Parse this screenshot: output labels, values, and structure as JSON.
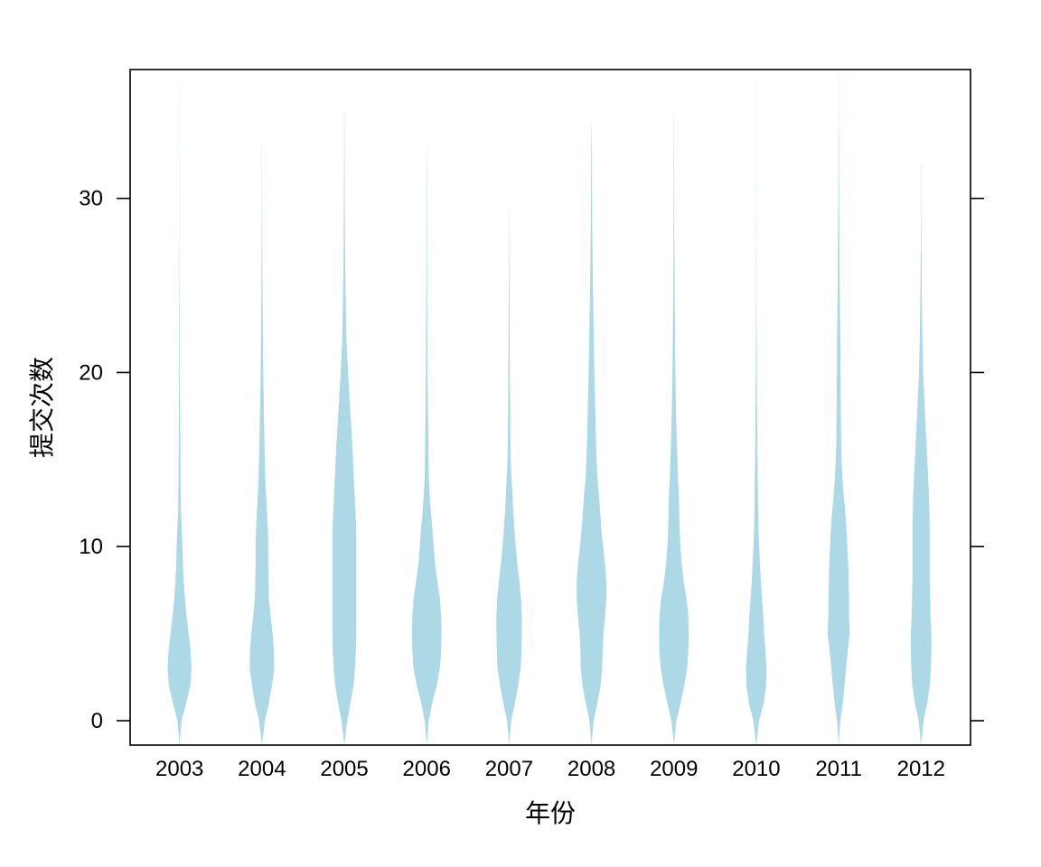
{
  "chart_data": {
    "type": "violin",
    "xlabel": "年份",
    "ylabel": "提交次数",
    "ylim": [
      -1.4,
      37.4
    ],
    "yticks": [
      0,
      10,
      20,
      30
    ],
    "ytick_labels": [
      "0",
      "10",
      "20",
      "30"
    ],
    "categories": [
      "2003",
      "2004",
      "2005",
      "2006",
      "2007",
      "2008",
      "2009",
      "2010",
      "2011",
      "2012"
    ],
    "fill_color": "#add8e6",
    "grid": false,
    "legend": "none",
    "series": [
      {
        "category": "2003",
        "profile": [
          [
            -1.4,
            0.0
          ],
          [
            0,
            0.05
          ],
          [
            1,
            0.16
          ],
          [
            2,
            0.26
          ],
          [
            3,
            0.29
          ],
          [
            4,
            0.27
          ],
          [
            5,
            0.22
          ],
          [
            6,
            0.17
          ],
          [
            7,
            0.13
          ],
          [
            8,
            0.1
          ],
          [
            9,
            0.08
          ],
          [
            10,
            0.07
          ],
          [
            11,
            0.055
          ],
          [
            12,
            0.035
          ],
          [
            14,
            0.025
          ],
          [
            16,
            0.02
          ],
          [
            18,
            0.016
          ],
          [
            20,
            0.01
          ],
          [
            25,
            0.005
          ],
          [
            30,
            0.003
          ],
          [
            37,
            0.001
          ]
        ]
      },
      {
        "category": "2004",
        "profile": [
          [
            -1.4,
            0.0
          ],
          [
            0,
            0.07
          ],
          [
            1,
            0.17
          ],
          [
            2,
            0.24
          ],
          [
            3,
            0.3
          ],
          [
            4,
            0.29
          ],
          [
            5,
            0.26
          ],
          [
            6,
            0.21
          ],
          [
            7,
            0.17
          ],
          [
            8,
            0.16
          ],
          [
            9,
            0.155
          ],
          [
            10,
            0.155
          ],
          [
            11,
            0.145
          ],
          [
            12,
            0.12
          ],
          [
            14,
            0.08
          ],
          [
            16,
            0.06
          ],
          [
            18,
            0.045
          ],
          [
            20,
            0.03
          ],
          [
            24,
            0.015
          ],
          [
            28,
            0.006
          ],
          [
            33,
            0.002
          ]
        ]
      },
      {
        "category": "2005",
        "profile": [
          [
            -1.4,
            0.0
          ],
          [
            0,
            0.07
          ],
          [
            1,
            0.15
          ],
          [
            2,
            0.22
          ],
          [
            3,
            0.26
          ],
          [
            4,
            0.28
          ],
          [
            5,
            0.29
          ],
          [
            6,
            0.29
          ],
          [
            7,
            0.29
          ],
          [
            8,
            0.29
          ],
          [
            9,
            0.29
          ],
          [
            10,
            0.29
          ],
          [
            11,
            0.29
          ],
          [
            12,
            0.27
          ],
          [
            13,
            0.25
          ],
          [
            14,
            0.23
          ],
          [
            16,
            0.19
          ],
          [
            18,
            0.14
          ],
          [
            20,
            0.09
          ],
          [
            22,
            0.05
          ],
          [
            26,
            0.02
          ],
          [
            30,
            0.01
          ],
          [
            35,
            0.003
          ]
        ]
      },
      {
        "category": "2006",
        "profile": [
          [
            -1.4,
            0.0
          ],
          [
            0,
            0.05
          ],
          [
            1,
            0.13
          ],
          [
            2,
            0.24
          ],
          [
            3,
            0.32
          ],
          [
            4,
            0.35
          ],
          [
            5,
            0.36
          ],
          [
            6,
            0.35
          ],
          [
            7,
            0.32
          ],
          [
            8,
            0.26
          ],
          [
            9,
            0.2
          ],
          [
            10,
            0.17
          ],
          [
            11,
            0.14
          ],
          [
            12,
            0.1
          ],
          [
            13,
            0.07
          ],
          [
            14,
            0.05
          ],
          [
            16,
            0.04
          ],
          [
            18,
            0.03
          ],
          [
            20,
            0.02
          ],
          [
            25,
            0.01
          ],
          [
            30,
            0.005
          ],
          [
            33,
            0.002
          ]
        ]
      },
      {
        "category": "2007",
        "profile": [
          [
            -1.4,
            0.0
          ],
          [
            0,
            0.05
          ],
          [
            1,
            0.14
          ],
          [
            2,
            0.22
          ],
          [
            3,
            0.28
          ],
          [
            4,
            0.3
          ],
          [
            5,
            0.31
          ],
          [
            6,
            0.31
          ],
          [
            7,
            0.29
          ],
          [
            8,
            0.25
          ],
          [
            9,
            0.2
          ],
          [
            10,
            0.16
          ],
          [
            11,
            0.13
          ],
          [
            12,
            0.1
          ],
          [
            13,
            0.08
          ],
          [
            14,
            0.06
          ],
          [
            15,
            0.04
          ],
          [
            16,
            0.03
          ],
          [
            18,
            0.025
          ],
          [
            20,
            0.018
          ],
          [
            24,
            0.01
          ],
          [
            28,
            0.004
          ],
          [
            29.5,
            0.001
          ]
        ]
      },
      {
        "category": "2008",
        "profile": [
          [
            -1.4,
            0.0
          ],
          [
            0,
            0.05
          ],
          [
            1,
            0.14
          ],
          [
            2,
            0.22
          ],
          [
            3,
            0.26
          ],
          [
            4,
            0.27
          ],
          [
            5,
            0.29
          ],
          [
            6,
            0.33
          ],
          [
            7,
            0.36
          ],
          [
            8,
            0.36
          ],
          [
            9,
            0.33
          ],
          [
            10,
            0.28
          ],
          [
            11,
            0.24
          ],
          [
            12,
            0.21
          ],
          [
            13,
            0.18
          ],
          [
            14,
            0.14
          ],
          [
            16,
            0.11
          ],
          [
            18,
            0.09
          ],
          [
            20,
            0.07
          ],
          [
            24,
            0.04
          ],
          [
            28,
            0.02
          ],
          [
            32,
            0.008
          ],
          [
            34.5,
            0.002
          ]
        ]
      },
      {
        "category": "2009",
        "profile": [
          [
            -1.4,
            0.0
          ],
          [
            0,
            0.06
          ],
          [
            1,
            0.16
          ],
          [
            2,
            0.25
          ],
          [
            3,
            0.32
          ],
          [
            4,
            0.35
          ],
          [
            5,
            0.36
          ],
          [
            6,
            0.35
          ],
          [
            7,
            0.31
          ],
          [
            8,
            0.24
          ],
          [
            9,
            0.19
          ],
          [
            10,
            0.16
          ],
          [
            11,
            0.14
          ],
          [
            12,
            0.13
          ],
          [
            13,
            0.12
          ],
          [
            14,
            0.1
          ],
          [
            16,
            0.07
          ],
          [
            18,
            0.05
          ],
          [
            20,
            0.035
          ],
          [
            24,
            0.02
          ],
          [
            28,
            0.01
          ],
          [
            35,
            0.002
          ]
        ]
      },
      {
        "category": "2010",
        "profile": [
          [
            -1.4,
            0.0
          ],
          [
            0,
            0.07
          ],
          [
            1,
            0.18
          ],
          [
            2,
            0.24
          ],
          [
            3,
            0.25
          ],
          [
            4,
            0.22
          ],
          [
            5,
            0.19
          ],
          [
            6,
            0.17
          ],
          [
            7,
            0.14
          ],
          [
            8,
            0.11
          ],
          [
            9,
            0.09
          ],
          [
            10,
            0.07
          ],
          [
            11,
            0.055
          ],
          [
            12,
            0.045
          ],
          [
            14,
            0.035
          ],
          [
            16,
            0.025
          ],
          [
            18,
            0.018
          ],
          [
            20,
            0.012
          ],
          [
            24,
            0.006
          ],
          [
            28,
            0.003
          ],
          [
            37,
            0.001
          ]
        ]
      },
      {
        "category": "2011",
        "profile": [
          [
            -1.4,
            0.0
          ],
          [
            0,
            0.04
          ],
          [
            1,
            0.1
          ],
          [
            2,
            0.14
          ],
          [
            3,
            0.18
          ],
          [
            4,
            0.22
          ],
          [
            5,
            0.27
          ],
          [
            6,
            0.25
          ],
          [
            7,
            0.25
          ],
          [
            8,
            0.24
          ],
          [
            9,
            0.23
          ],
          [
            10,
            0.21
          ],
          [
            11,
            0.19
          ],
          [
            12,
            0.16
          ],
          [
            13,
            0.12
          ],
          [
            14,
            0.09
          ],
          [
            15,
            0.07
          ],
          [
            16,
            0.06
          ],
          [
            18,
            0.05
          ],
          [
            20,
            0.045
          ],
          [
            22,
            0.04
          ],
          [
            24,
            0.03
          ],
          [
            27,
            0.02
          ],
          [
            30,
            0.01
          ],
          [
            34,
            0.004
          ],
          [
            37.4,
            0.001
          ]
        ]
      },
      {
        "category": "2012",
        "profile": [
          [
            -1.4,
            0.0
          ],
          [
            0,
            0.06
          ],
          [
            1,
            0.15
          ],
          [
            2,
            0.21
          ],
          [
            3,
            0.24
          ],
          [
            4,
            0.25
          ],
          [
            5,
            0.25
          ],
          [
            6,
            0.23
          ],
          [
            7,
            0.22
          ],
          [
            8,
            0.21
          ],
          [
            9,
            0.21
          ],
          [
            10,
            0.21
          ],
          [
            11,
            0.21
          ],
          [
            12,
            0.2
          ],
          [
            13,
            0.19
          ],
          [
            14,
            0.17
          ],
          [
            16,
            0.13
          ],
          [
            18,
            0.09
          ],
          [
            20,
            0.05
          ],
          [
            22,
            0.03
          ],
          [
            25,
            0.015
          ],
          [
            28,
            0.006
          ],
          [
            32,
            0.002
          ]
        ]
      }
    ]
  }
}
